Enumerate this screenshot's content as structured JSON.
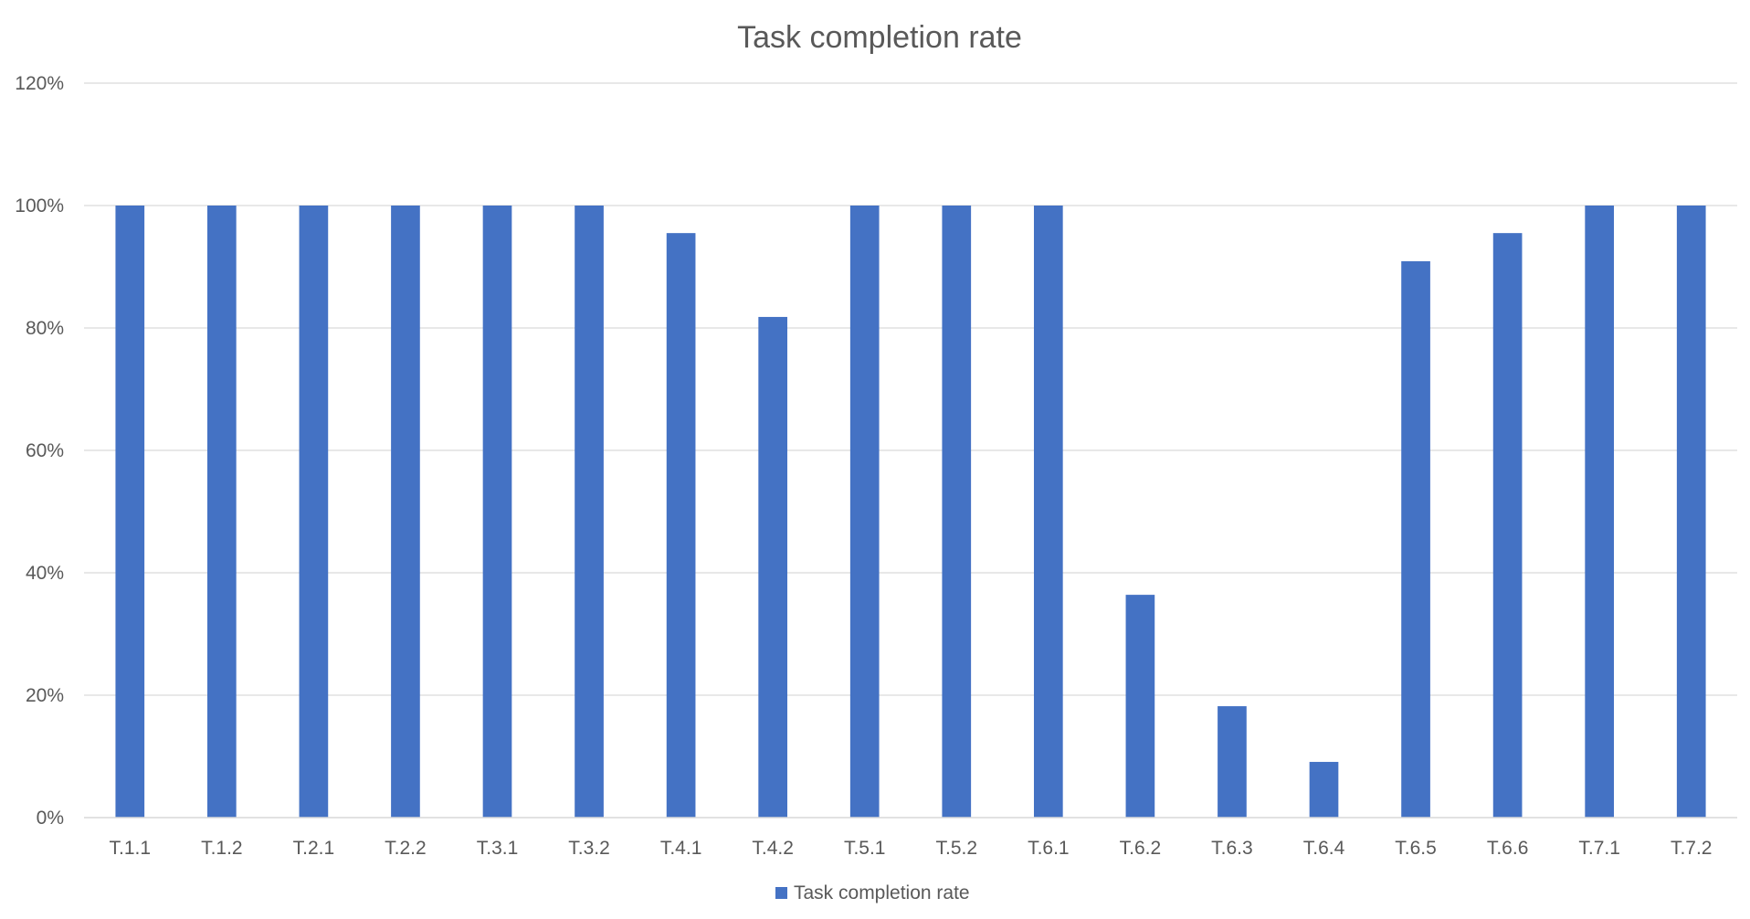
{
  "chart_data": {
    "type": "bar",
    "title": "Task completion rate",
    "xlabel": "",
    "ylabel": "",
    "categories": [
      "T.1.1",
      "T.1.2",
      "T.2.1",
      "T.2.2",
      "T.3.1",
      "T.3.2",
      "T.4.1",
      "T.4.2",
      "T.5.1",
      "T.5.2",
      "T.6.1",
      "T.6.2",
      "T.6.3",
      "T.6.4",
      "T.6.5",
      "T.6.6",
      "T.7.1",
      "T.7.2"
    ],
    "series": [
      {
        "name": "Task completion rate",
        "color": "#4472c4",
        "values": [
          1.0,
          1.0,
          1.0,
          1.0,
          1.0,
          1.0,
          0.955,
          0.818,
          1.0,
          1.0,
          1.0,
          0.364,
          0.182,
          0.091,
          0.909,
          0.955,
          1.0,
          1.0
        ]
      }
    ],
    "ylim": [
      0,
      1.2
    ],
    "yticks": [
      0,
      0.2,
      0.4,
      0.6,
      0.8,
      1.0,
      1.2
    ],
    "ytick_labels": [
      "0%",
      "20%",
      "40%",
      "60%",
      "80%",
      "100%",
      "120%"
    ],
    "grid": true,
    "legend_position": "bottom"
  }
}
